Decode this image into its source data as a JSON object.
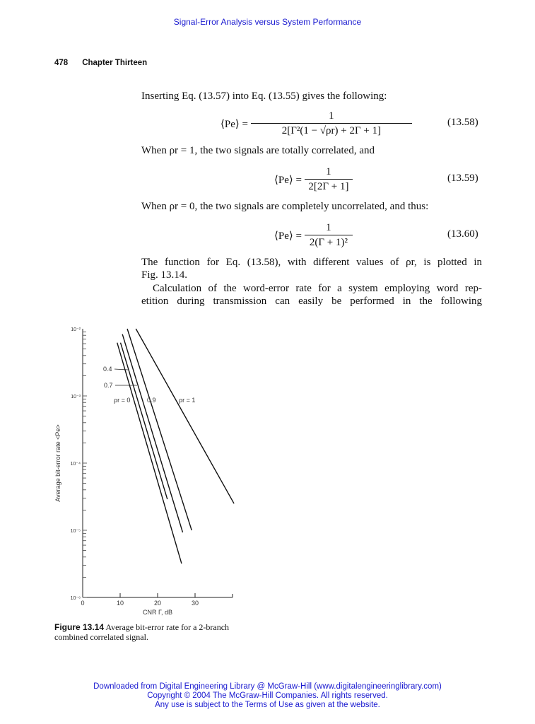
{
  "header": {
    "title": "Signal-Error Analysis versus System Performance"
  },
  "running_head": {
    "page_number": "478",
    "chapter": "Chapter Thirteen"
  },
  "body": {
    "intro": "Inserting Eq. (13.57) into Eq. (13.55) gives the following:",
    "eq1": {
      "lhs": "⟨Pe⟩ =",
      "num": "1",
      "den": "2[Γ²(1 − √ρr) + 2Γ + 1]",
      "number": "(13.58)"
    },
    "p2": "When ρr = 1, the two signals are totally correlated, and",
    "eq2": {
      "lhs": "⟨Pe⟩ =",
      "num": "1",
      "den": "2[2Γ + 1]",
      "number": "(13.59)"
    },
    "p3": "When ρr = 0, the two signals are completely uncorrelated, and thus:",
    "eq3": {
      "lhs": "⟨Pe⟩ =",
      "num": "1",
      "den": "2(Γ + 1)²",
      "number": "(13.60)"
    },
    "p4_lines": [
      "The function for Eq. (13.58), with different values of ρr, is plotted in",
      "Fig. 13.14."
    ],
    "p5_lines": [
      "Calculation of the word-error rate for a system employing word rep-",
      "etition during transmission can easily be performed in the following"
    ]
  },
  "figure": {
    "caption_label": "Figure 13.14",
    "caption_text": "Average bit-error rate for a 2-branch combined correlated signal."
  },
  "chart_data": {
    "type": "line",
    "xlabel": "CNR Γ, dB",
    "ylabel": "Average bit-error rate <Pe>",
    "xlim": [
      0,
      40
    ],
    "ylim": [
      1e-06,
      0.01
    ],
    "yscale": "log",
    "grid": false,
    "x_ticks": [
      "0",
      "10",
      "20",
      "30"
    ],
    "y_ticks": [
      "10⁻²",
      "10⁻³",
      "10⁻⁴",
      "10⁻⁵",
      "10⁻⁶"
    ],
    "series": [
      {
        "name": "ρr = 0",
        "label": "ρr = 0",
        "points": [
          [
            9.2,
            0.0062
          ],
          [
            26.4,
            3.2e-06
          ]
        ]
      },
      {
        "name": "0.4",
        "label": "0.4",
        "points": [
          [
            10.1,
            0.0062
          ],
          [
            22.6,
            2.9e-05
          ]
        ]
      },
      {
        "name": "0.7",
        "label": "0.7",
        "points": [
          [
            10.6,
            0.0083
          ],
          [
            26.7,
            9.3e-06
          ]
        ]
      },
      {
        "name": "0.9",
        "label": "0.9",
        "points": [
          [
            11.9,
            0.01
          ],
          [
            29.1,
            1e-05
          ]
        ]
      },
      {
        "name": "ρr = 1",
        "label": "ρr = 1",
        "points": [
          [
            14.2,
            0.01
          ],
          [
            40.4,
            2.5e-05
          ]
        ]
      }
    ]
  },
  "footer": {
    "line1": "Downloaded from Digital Engineering Library @ McGraw-Hill (www.digitalengineeringlibrary.com)",
    "line2": "Copyright © 2004 The McGraw-Hill Companies. All rights reserved.",
    "line3": "Any use is subject to the Terms of Use as given at the website."
  }
}
